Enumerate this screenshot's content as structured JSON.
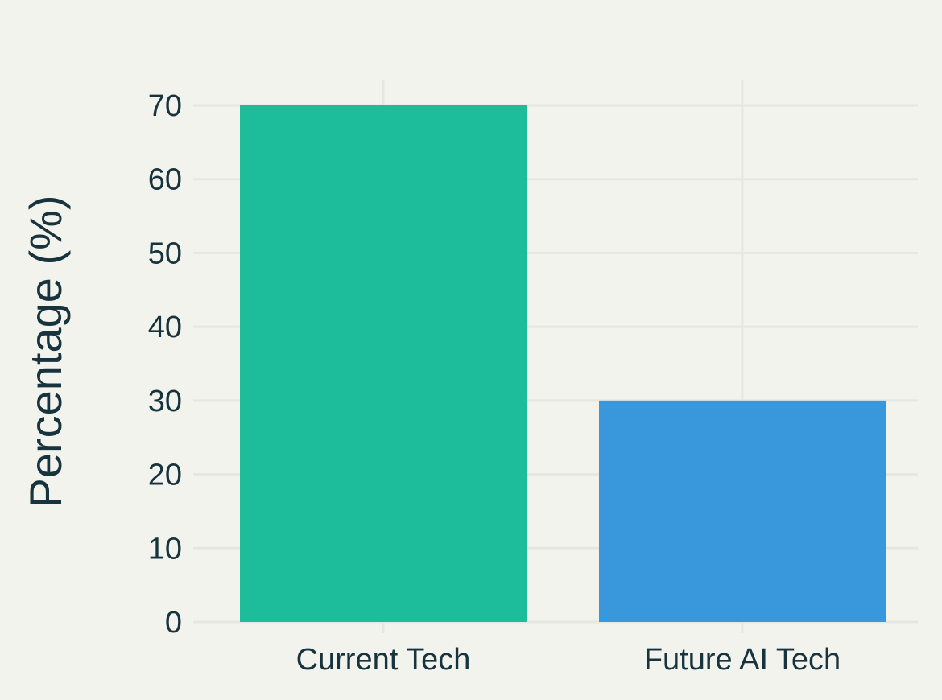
{
  "chart_data": {
    "type": "bar",
    "categories": [
      "Current Tech",
      "Future AI Tech"
    ],
    "values": [
      70,
      30
    ],
    "colors": [
      "#1dbd9b",
      "#3898db"
    ],
    "title": "",
    "xlabel": "",
    "ylabel": "Percentage (%)",
    "ylim": [
      0,
      70
    ],
    "yticks": [
      0,
      10,
      20,
      30,
      40,
      50,
      60,
      70
    ],
    "grid": true,
    "background": "#f3f3ee",
    "grid_color": "#e6e7e1",
    "text_color": "#17333d"
  }
}
